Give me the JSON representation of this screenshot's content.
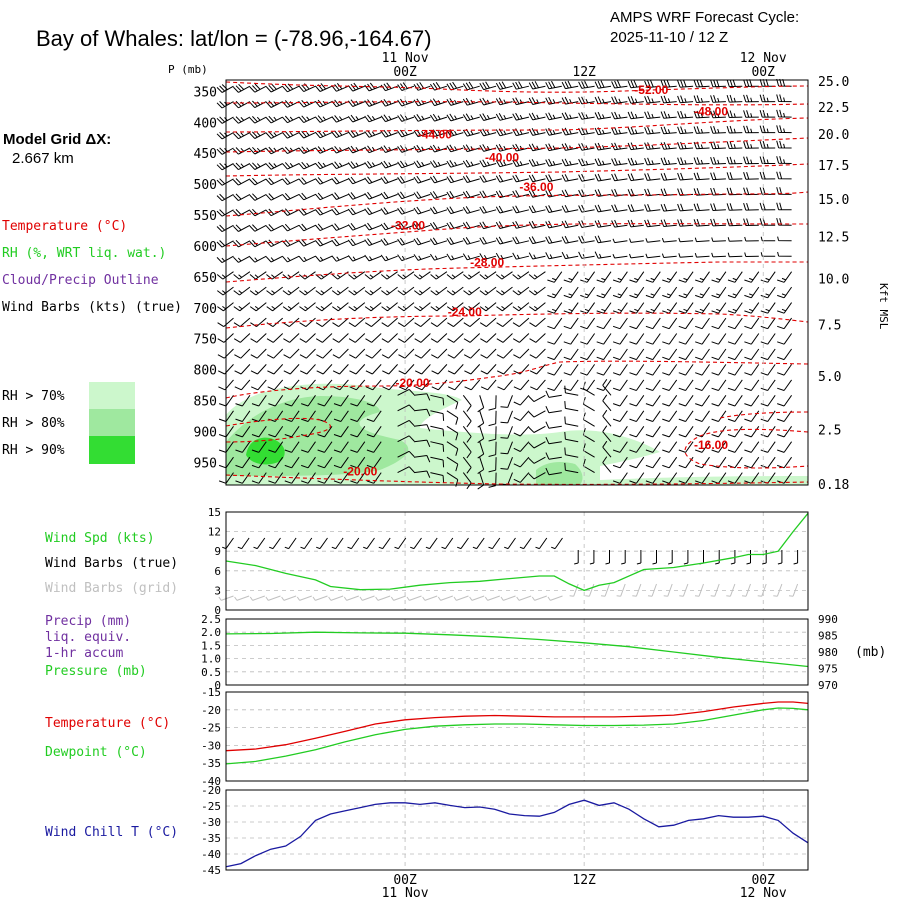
{
  "header": {
    "title": "Bay of Whales:  lat/lon = (-78.96,-164.67)",
    "cycle_line1": "AMPS WRF Forecast Cycle:",
    "cycle_line2": "2025-11-10 / 12  Z",
    "model_grid_line1": "Model Grid ΔX:",
    "model_grid_line2": "2.667 km"
  },
  "time_axis": {
    "top_labels": [
      {
        "hour": 12,
        "top": "11 Nov",
        "bottom": "00Z"
      },
      {
        "hour": 24,
        "top": "",
        "bottom": "12Z"
      },
      {
        "hour": 36,
        "top": "12 Nov",
        "bottom": "00Z"
      }
    ],
    "bottom_labels": [
      {
        "hour": 12,
        "top": "00Z",
        "bottom": "11 Nov"
      },
      {
        "hour": 24,
        "top": "12Z",
        "bottom": ""
      },
      {
        "hour": 36,
        "top": "00Z",
        "bottom": "12 Nov"
      }
    ],
    "range_hours": [
      0,
      39
    ]
  },
  "legend": {
    "temperature": "Temperature (°C)",
    "rh": "RH (%, WRT liq. wat.)",
    "cloud": "Cloud/Precip Outline",
    "wind_barbs": "Wind Barbs (kts) (true)",
    "rh70": "RH > 70%",
    "rh80": "RH > 80%",
    "rh90": "RH > 90%",
    "colors": {
      "rh70": "#ccf7cc",
      "rh80": "#9fe89f",
      "rh90": "#33dd33",
      "temp": "#e00000",
      "rh": "#22cc22",
      "cloud": "#7030a0"
    }
  },
  "chart_data": [
    {
      "type": "heatmap",
      "name": "cross-section",
      "ylabel": "P (mb)",
      "y2label": "Kft MSL",
      "ylim": [
        330,
        985
      ],
      "pressure_ticks": [
        350,
        400,
        450,
        500,
        550,
        600,
        650,
        700,
        750,
        800,
        850,
        900,
        950
      ],
      "height_ticks": [
        {
          "p": 333,
          "label": "25.0"
        },
        {
          "p": 375,
          "label": "22.5"
        },
        {
          "p": 419,
          "label": "20.0"
        },
        {
          "p": 469,
          "label": "17.5"
        },
        {
          "p": 524,
          "label": "15.0"
        },
        {
          "p": 585,
          "label": "12.5"
        },
        {
          "p": 653,
          "label": "10.0"
        },
        {
          "p": 727,
          "label": "7.5"
        },
        {
          "p": 810,
          "label": "5.0"
        },
        {
          "p": 897,
          "label": "2.5"
        },
        {
          "p": 985,
          "label": "0.18"
        }
      ],
      "isotherm_labels": [
        {
          "text": "-52.00",
          "t": 28.5,
          "p": 346
        },
        {
          "text": "-48.00",
          "t": 32.5,
          "p": 381
        },
        {
          "text": "-44.00",
          "t": 14.0,
          "p": 418
        },
        {
          "text": "-40.00",
          "t": 18.5,
          "p": 455
        },
        {
          "text": "-36.00",
          "t": 20.8,
          "p": 503
        },
        {
          "text": "-32.00",
          "t": 12.2,
          "p": 565
        },
        {
          "text": "-28.00",
          "t": 17.5,
          "p": 625
        },
        {
          "text": "-24.00",
          "t": 16.0,
          "p": 705
        },
        {
          "text": "-20.00",
          "t": 12.5,
          "p": 820
        },
        {
          "text": "-16.00",
          "t": 32.5,
          "p": 920
        },
        {
          "text": "-20.00",
          "t": 9.0,
          "p": 963
        }
      ]
    },
    {
      "type": "line",
      "name": "wind-speed",
      "ylabel": "Wind Spd (kts)",
      "ylim": [
        0,
        15
      ],
      "yticks": [
        0,
        3,
        6,
        9,
        12,
        15
      ],
      "series": [
        {
          "name": "Wind Spd (kts)",
          "color": "#22cc22",
          "x": [
            0,
            2,
            4,
            6,
            7,
            9,
            11,
            13,
            15,
            17,
            19,
            21,
            22,
            23,
            24,
            25,
            26,
            28,
            30,
            32,
            34,
            35,
            36,
            37,
            38,
            39
          ],
          "values": [
            7.5,
            6.8,
            5.6,
            4.6,
            3.6,
            3.1,
            3.2,
            3.8,
            4.2,
            4.4,
            4.8,
            5.2,
            5.2,
            4.0,
            3.0,
            3.8,
            4.2,
            6.2,
            6.5,
            7.2,
            8.0,
            8.5,
            8.5,
            9.0,
            12.0,
            14.8
          ]
        }
      ],
      "labels": {
        "speed": "Wind Spd (kts)",
        "barbs_true": "Wind Barbs (true)",
        "barbs_grid": "Wind Barbs (grid)"
      }
    },
    {
      "type": "line",
      "name": "precip-pressure",
      "ylim": [
        0,
        2.5
      ],
      "yticks": [
        "0",
        "0.5",
        "1.0",
        "1.5",
        "2.0",
        "2.5"
      ],
      "y2ticks": [
        "970",
        "975",
        "980",
        "985",
        "990"
      ],
      "y2lim": [
        970,
        990
      ],
      "y2label": "(mb)",
      "series": [
        {
          "name": "Pressure (mb)",
          "axis": "right",
          "color": "#22cc22",
          "x": [
            0,
            3,
            6,
            9,
            12,
            15,
            18,
            21,
            24,
            27,
            30,
            33,
            36,
            39
          ],
          "values": [
            985.5,
            985.6,
            986.0,
            985.8,
            985.7,
            985.2,
            984.6,
            983.8,
            982.8,
            981.6,
            980.0,
            978.4,
            977.0,
            975.6
          ]
        }
      ],
      "labels": {
        "precip": "Precip (mm)",
        "liq": "liq. equiv.",
        "accum": "1-hr accum",
        "pressure": "Pressure (mb)"
      }
    },
    {
      "type": "line",
      "name": "temperature-dewpoint",
      "ylim": [
        -40,
        -15
      ],
      "yticks": [
        -40,
        -35,
        -30,
        -25,
        -20,
        -15
      ],
      "series": [
        {
          "name": "Temperature (°C)",
          "color": "#e00000",
          "x": [
            0,
            2,
            4,
            6,
            8,
            10,
            12,
            14,
            16,
            18,
            20,
            22,
            24,
            26,
            28,
            30,
            32,
            34,
            36,
            37,
            38,
            39
          ],
          "values": [
            -31.5,
            -31.0,
            -29.8,
            -28.0,
            -26.0,
            -24.0,
            -22.8,
            -22.2,
            -21.8,
            -21.6,
            -21.8,
            -22.0,
            -22.0,
            -22.0,
            -21.8,
            -21.5,
            -20.5,
            -19.2,
            -18.2,
            -17.8,
            -17.8,
            -18.2
          ]
        },
        {
          "name": "Dewpoint (°C)",
          "color": "#22cc22",
          "x": [
            0,
            2,
            4,
            6,
            8,
            10,
            12,
            14,
            16,
            18,
            20,
            22,
            24,
            26,
            28,
            30,
            32,
            34,
            36,
            37,
            38,
            39
          ],
          "values": [
            -35.2,
            -34.5,
            -33.0,
            -31.2,
            -29.0,
            -27.0,
            -25.5,
            -24.6,
            -24.2,
            -24.0,
            -24.0,
            -24.2,
            -24.4,
            -24.4,
            -24.3,
            -24.0,
            -23.0,
            -21.5,
            -20.0,
            -19.5,
            -19.6,
            -20.0
          ]
        }
      ],
      "labels": {
        "temp": "Temperature (°C)",
        "dew": "Dewpoint (°C)"
      }
    },
    {
      "type": "line",
      "name": "wind-chill",
      "ylim": [
        -45,
        -20
      ],
      "yticks": [
        -45,
        -40,
        -35,
        -30,
        -25,
        -20
      ],
      "series": [
        {
          "name": "Wind Chill T (°C)",
          "color": "#1a1aa0",
          "x": [
            0,
            1,
            2,
            3,
            4,
            5,
            6,
            7,
            8,
            9,
            10,
            11,
            12,
            13,
            14,
            15,
            16,
            17,
            18,
            19,
            20,
            21,
            22,
            23,
            24,
            25,
            26,
            27,
            28,
            29,
            30,
            31,
            32,
            33,
            34,
            35,
            36,
            37,
            38,
            39
          ],
          "values": [
            -44.0,
            -43.0,
            -40.5,
            -38.5,
            -37.5,
            -34.5,
            -29.5,
            -27.5,
            -26.5,
            -25.5,
            -24.5,
            -24.0,
            -24.0,
            -24.5,
            -24.0,
            -24.8,
            -25.5,
            -25.3,
            -26.0,
            -27.5,
            -28.0,
            -28.2,
            -27.0,
            -24.5,
            -23.2,
            -24.8,
            -24.0,
            -26.0,
            -29.0,
            -31.5,
            -31.0,
            -29.5,
            -29.0,
            -28.0,
            -28.5,
            -28.5,
            -28.2,
            -29.5,
            -33.5,
            -36.5
          ]
        }
      ],
      "labels": {
        "windchill": "Wind Chill T (°C)"
      }
    }
  ]
}
